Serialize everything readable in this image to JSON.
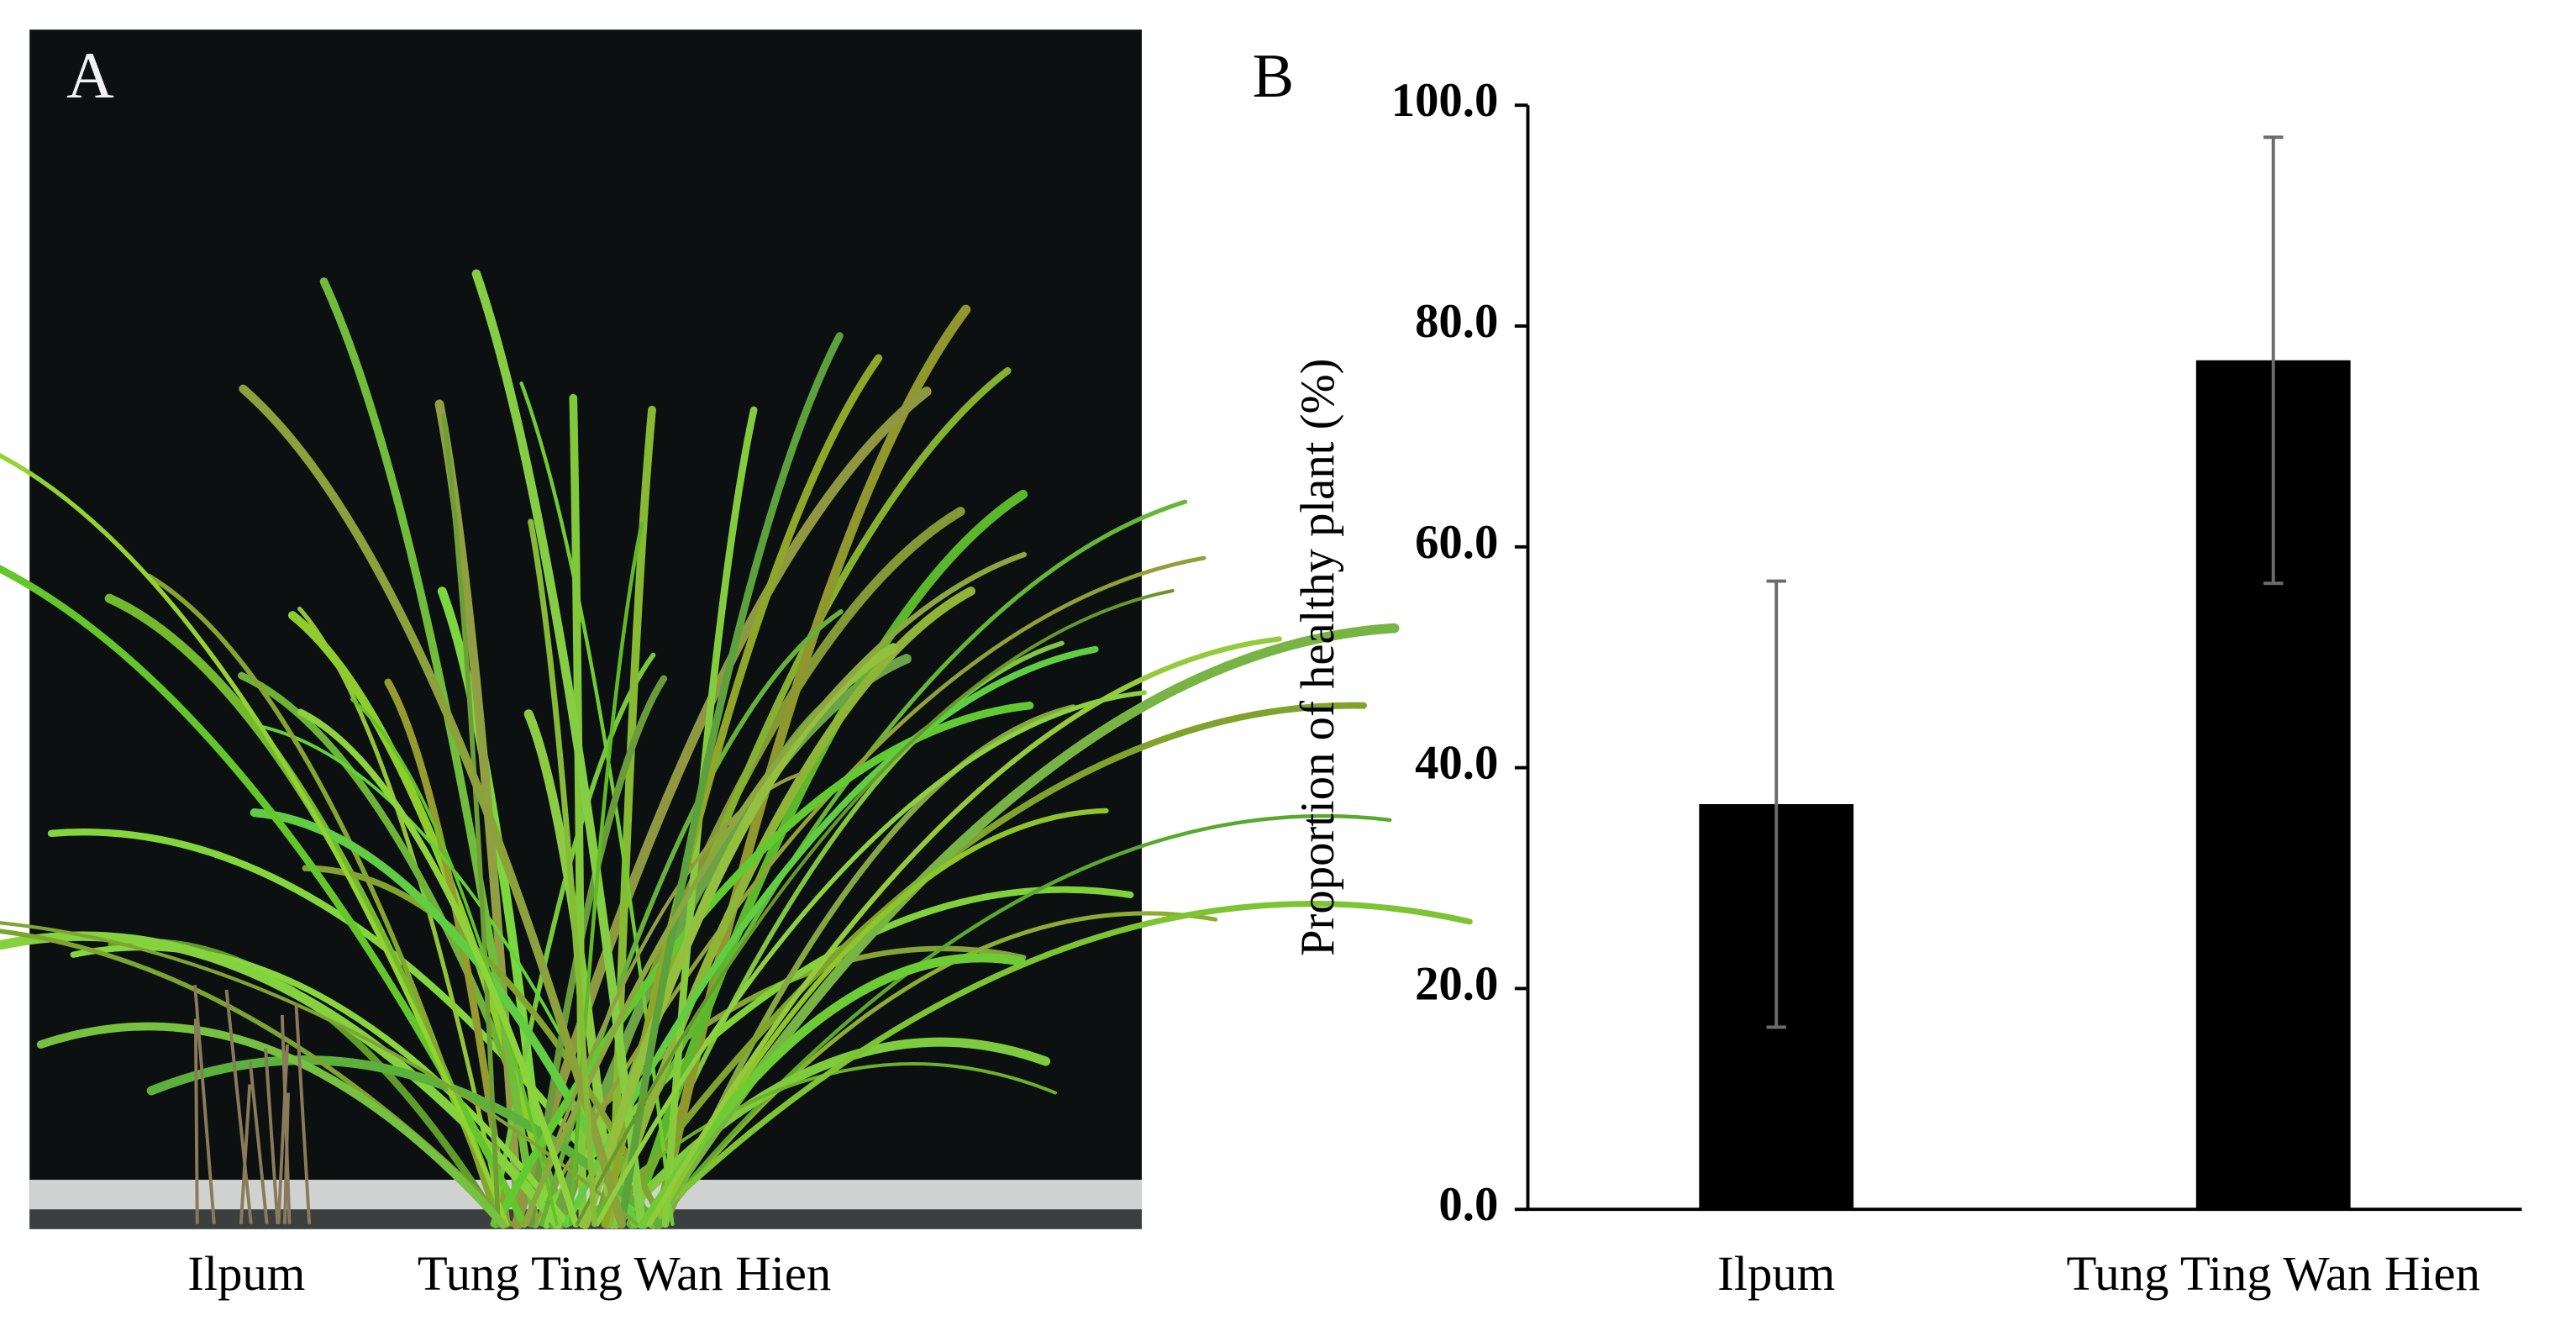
{
  "panel_a": {
    "label": "A",
    "captions": [
      "Ilpum",
      "Tung Ting Wan Hien"
    ]
  },
  "chart_data": {
    "type": "bar",
    "panel_label": "B",
    "ylabel": "Proportion of healthy plant (%)",
    "categories": [
      "Ilpum",
      "Tung Ting Wan Hien"
    ],
    "values": [
      36.7,
      76.9
    ],
    "errors": [
      20.2,
      20.2
    ],
    "color": "#000000",
    "ylim": [
      0,
      100
    ],
    "yticks": [
      {
        "value": 0,
        "label": "0.0"
      },
      {
        "value": 20,
        "label": "20.0"
      },
      {
        "value": 40,
        "label": "40.0"
      },
      {
        "value": 60,
        "label": "60.0"
      },
      {
        "value": 80,
        "label": "80.0"
      },
      {
        "value": 100,
        "label": "100.0"
      }
    ]
  }
}
